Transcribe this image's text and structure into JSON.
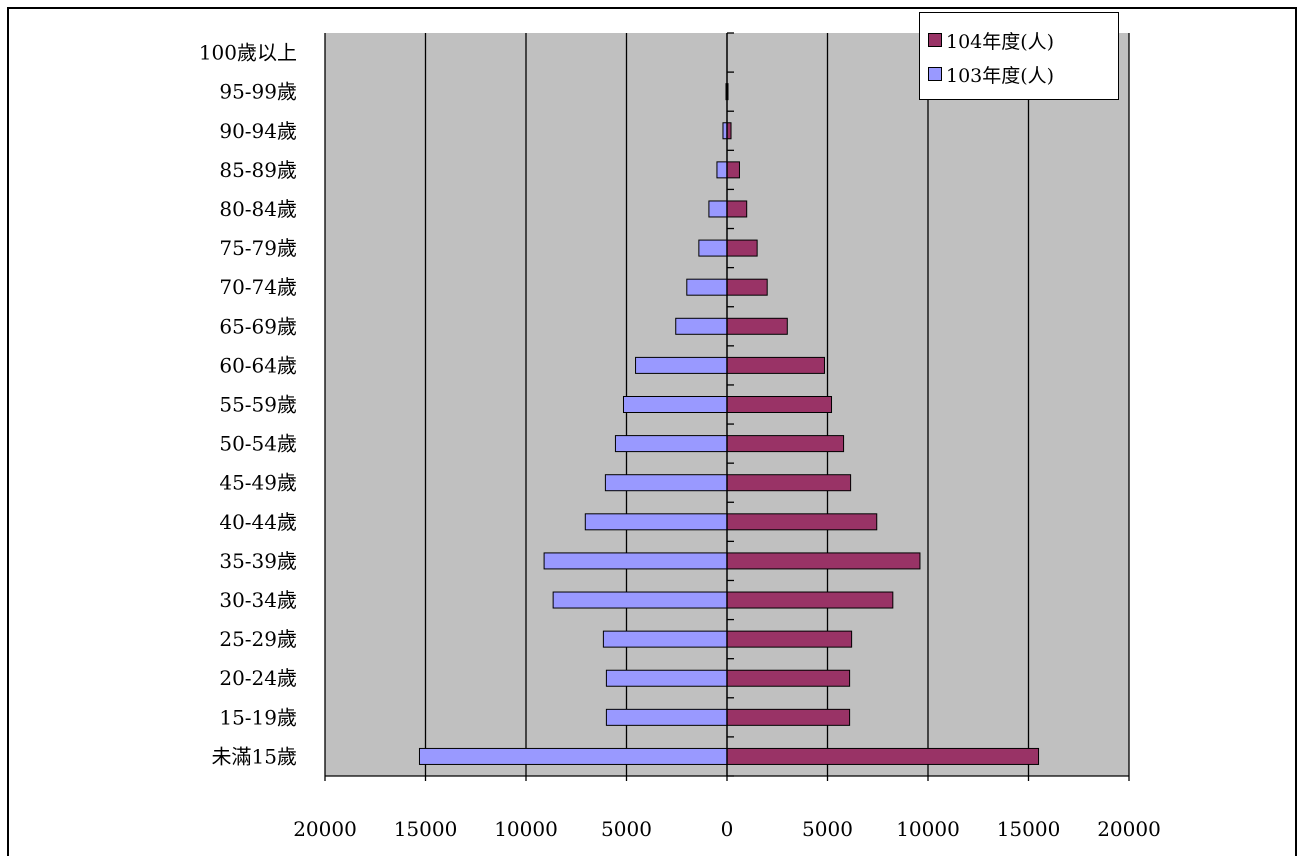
{
  "chart_data": {
    "type": "bar",
    "orientation": "horizontal",
    "layout": "population-pyramid",
    "categories": [
      "100歲以上",
      "95-99歲",
      "90-94歲",
      "85-89歲",
      "80-84歲",
      "75-79歲",
      "70-74歲",
      "65-69歲",
      "60-64歲",
      "55-59歲",
      "50-54歲",
      "45-49歲",
      "40-44歲",
      "35-39歲",
      "30-34歲",
      "25-29歲",
      "20-24歲",
      "15-19歲",
      "未滿15歲"
    ],
    "series": [
      {
        "name": "104年度(人)",
        "side": "right",
        "color": "#993366",
        "values": [
          0,
          40,
          200,
          620,
          980,
          1500,
          2000,
          3000,
          4850,
          5200,
          5800,
          6150,
          7450,
          9600,
          8250,
          6200,
          6100,
          6100,
          15500
        ]
      },
      {
        "name": "103年度(人)",
        "side": "left",
        "color": "#9999ff",
        "values": [
          0,
          40,
          200,
          500,
          900,
          1400,
          2000,
          2550,
          4550,
          5150,
          5550,
          6050,
          7050,
          9100,
          8650,
          6150,
          6000,
          6000,
          15300
        ]
      }
    ],
    "xlim": [
      -20000,
      20000
    ],
    "x_tick_labels": [
      "20000",
      "15000",
      "10000",
      "5000",
      "0",
      "5000",
      "10000",
      "15000",
      "20000"
    ],
    "grid": "vertical",
    "plot_background": "#c0c0c0",
    "legend_position": "top-right"
  }
}
